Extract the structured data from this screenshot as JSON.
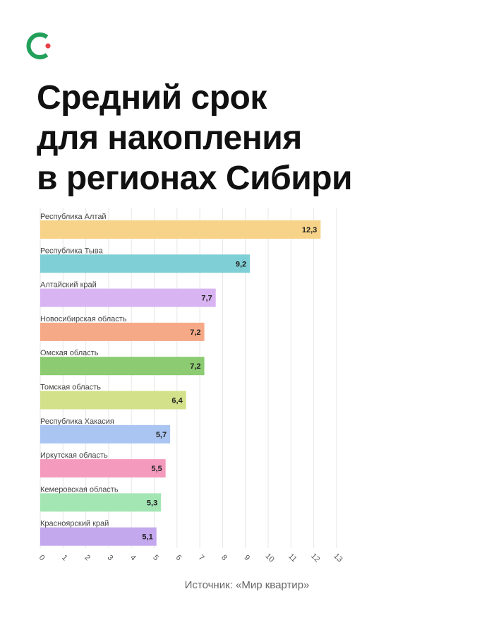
{
  "header": {
    "title_lines": [
      "Средний срок",
      "для накопления",
      "в регионах Сибири"
    ]
  },
  "logo": {
    "color": "#22a05a",
    "dot_color": "#e8404a"
  },
  "source": "Источник: «Мир квартир»",
  "chart_data": {
    "type": "bar",
    "orientation": "horizontal",
    "categories": [
      "Республика Алтай",
      "Республика Тыва",
      "Алтайский край",
      "Новосибирская область",
      "Омская область",
      "Томская область",
      "Республика Хакасия",
      "Иркутская область",
      "Кемеровская область",
      "Красноярский край"
    ],
    "values": [
      12.3,
      9.2,
      7.7,
      7.2,
      7.2,
      6.4,
      5.7,
      5.5,
      5.3,
      5.1
    ],
    "value_labels": [
      "12,3",
      "9,2",
      "7,7",
      "7,2",
      "7,2",
      "6,4",
      "5,7",
      "5,5",
      "5,3",
      "5,1"
    ],
    "colors": [
      "#f7d389",
      "#7fd0d6",
      "#d9b4f2",
      "#f6a987",
      "#8ccb72",
      "#d3e28a",
      "#aac5f1",
      "#f49bbd",
      "#a3e6b4",
      "#c4a8ee"
    ],
    "xlim": [
      0,
      13
    ],
    "x_ticks": [
      "0",
      "1",
      "2",
      "3",
      "4",
      "5",
      "6",
      "7",
      "8",
      "9",
      "10",
      "11",
      "12",
      "13"
    ],
    "grid": true
  }
}
